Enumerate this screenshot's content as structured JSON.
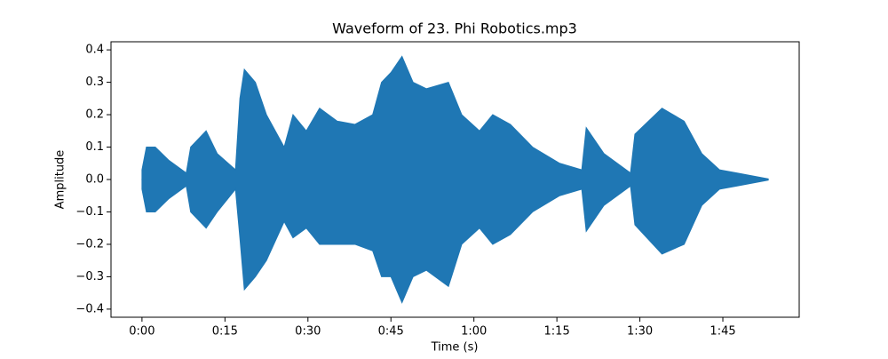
{
  "chart_data": {
    "type": "area",
    "title": "Waveform of 23. Phi Robotics.mp3",
    "x_label": "Time (s)",
    "y_label": "Amplitude",
    "color": "#1f77b4",
    "x": [
      0,
      0.8,
      2.4,
      4.8,
      8,
      8.8,
      11.6,
      13.6,
      16.9,
      17.7,
      18.5,
      20.5,
      22.5,
      25.7,
      27.3,
      29.7,
      32.1,
      35.3,
      38.5,
      41.7,
      43.3,
      45,
      47,
      49,
      51.4,
      55.4,
      57.8,
      61,
      63.4,
      66.6,
      70.6,
      75.5,
      79.5,
      80.3,
      83.5,
      88.3,
      89.1,
      94,
      98,
      101.2,
      104.4,
      107.6,
      113.2
    ],
    "upper": [
      0.03,
      0.1,
      0.1,
      0.06,
      0.02,
      0.1,
      0.15,
      0.08,
      0.03,
      0.25,
      0.34,
      0.3,
      0.2,
      0.1,
      0.2,
      0.15,
      0.22,
      0.18,
      0.17,
      0.2,
      0.3,
      0.33,
      0.38,
      0.3,
      0.28,
      0.3,
      0.2,
      0.15,
      0.2,
      0.17,
      0.1,
      0.05,
      0.03,
      0.16,
      0.08,
      0.02,
      0.14,
      0.22,
      0.18,
      0.08,
      0.03,
      0.02,
      0.002
    ],
    "lower": [
      -0.03,
      -0.1,
      -0.1,
      -0.06,
      -0.02,
      -0.1,
      -0.15,
      -0.1,
      -0.03,
      -0.18,
      -0.34,
      -0.3,
      -0.25,
      -0.13,
      -0.18,
      -0.15,
      -0.2,
      -0.2,
      -0.2,
      -0.22,
      -0.3,
      -0.3,
      -0.38,
      -0.3,
      -0.28,
      -0.33,
      -0.2,
      -0.15,
      -0.2,
      -0.17,
      -0.1,
      -0.05,
      -0.03,
      -0.16,
      -0.08,
      -0.02,
      -0.14,
      -0.23,
      -0.2,
      -0.08,
      -0.03,
      -0.02,
      -0.002
    ],
    "xlim": [
      -5.6,
      118.8
    ],
    "ylim": [
      -0.425,
      0.425
    ],
    "xticks": [
      {
        "value": 0,
        "label": "0:00"
      },
      {
        "value": 15,
        "label": "0:15"
      },
      {
        "value": 30,
        "label": "0:30"
      },
      {
        "value": 45,
        "label": "0:45"
      },
      {
        "value": 60,
        "label": "1:00"
      },
      {
        "value": 75,
        "label": "1:15"
      },
      {
        "value": 90,
        "label": "1:30"
      },
      {
        "value": 105,
        "label": "1:45"
      }
    ],
    "yticks": [
      {
        "value": -0.4,
        "label": "−0.4"
      },
      {
        "value": -0.3,
        "label": "−0.3"
      },
      {
        "value": -0.2,
        "label": "−0.2"
      },
      {
        "value": -0.1,
        "label": "−0.1"
      },
      {
        "value": 0,
        "label": "0.0"
      },
      0.1,
      0.2,
      0.3,
      0.4
    ]
  }
}
